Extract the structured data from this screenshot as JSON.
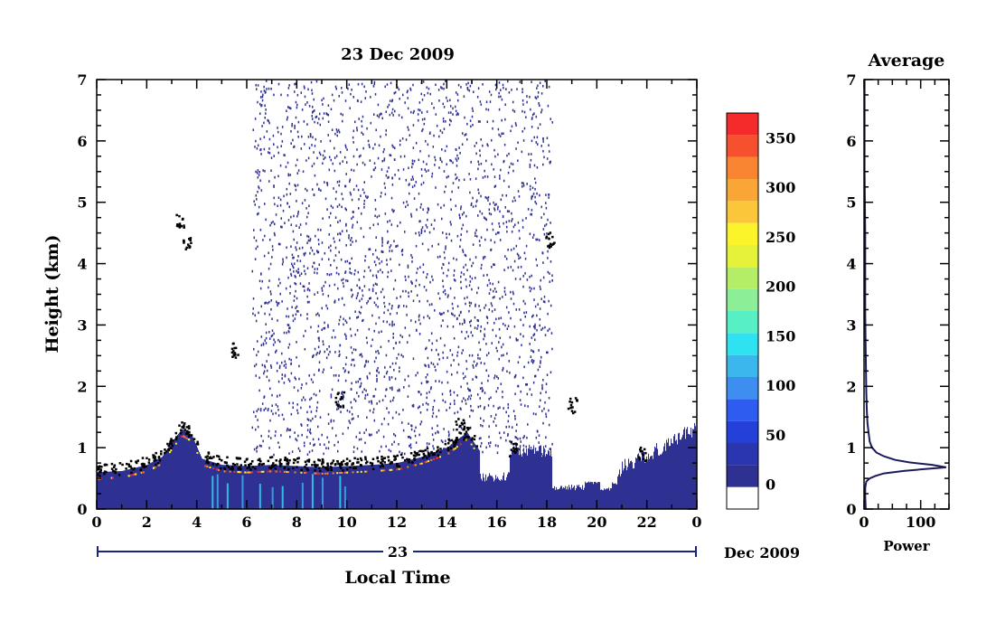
{
  "chart_data": [
    {
      "type": "heatmap",
      "title": "23 Dec 2009",
      "xlabel": "Local Time",
      "ylabel": "Height (km)",
      "x_ticks": [
        "0",
        "2",
        "4",
        "6",
        "8",
        "10",
        "12",
        "14",
        "16",
        "18",
        "20",
        "22",
        "0"
      ],
      "x_range": [
        0,
        24
      ],
      "y_ticks": [
        "0",
        "1",
        "2",
        "3",
        "4",
        "5",
        "6",
        "7"
      ],
      "y_range": [
        0,
        7
      ],
      "date_bar": {
        "day_label": "23",
        "month_label": "Dec 2009"
      },
      "colorbar": {
        "tick_labels": [
          "0",
          "50",
          "100",
          "150",
          "200",
          "250",
          "300",
          "350"
        ],
        "tick_values": [
          0,
          50,
          100,
          150,
          200,
          250,
          300,
          350
        ],
        "range": [
          -25,
          375
        ],
        "colors": [
          "#ffffff",
          "#2e3192",
          "#2a35b0",
          "#2540d8",
          "#2f5cf0",
          "#3e8ef2",
          "#3cb7ee",
          "#2fe2f2",
          "#56f0c4",
          "#8cee96",
          "#b4ee66",
          "#e6f23a",
          "#fcf42a",
          "#fbc63a",
          "#f9a636",
          "#f98432",
          "#f7502e",
          "#f52a2a"
        ]
      },
      "boundary_layer_top_km": [
        [
          0.0,
          0.6
        ],
        [
          1.0,
          0.62
        ],
        [
          2.0,
          0.72
        ],
        [
          2.6,
          0.85
        ],
        [
          3.0,
          1.1
        ],
        [
          3.4,
          1.3
        ],
        [
          3.8,
          1.2
        ],
        [
          4.2,
          0.82
        ],
        [
          5.0,
          0.72
        ],
        [
          6.0,
          0.7
        ],
        [
          7.0,
          0.72
        ],
        [
          8.0,
          0.7
        ],
        [
          9.0,
          0.68
        ],
        [
          10.0,
          0.7
        ],
        [
          11.0,
          0.72
        ],
        [
          12.0,
          0.75
        ],
        [
          13.0,
          0.85
        ],
        [
          14.0,
          1.0
        ],
        [
          14.8,
          1.25
        ],
        [
          15.3,
          0.95
        ]
      ],
      "noise_region_hours": [
        6.2,
        18.2
      ],
      "clear_zone_hours": [
        19.5,
        20.8
      ]
    },
    {
      "type": "line",
      "title": "Average",
      "xlabel": "Power",
      "ylabel": "",
      "x_ticks": [
        "0",
        "100"
      ],
      "xlim": [
        0,
        150
      ],
      "y_ticks": [
        "0",
        "1",
        "2",
        "3",
        "4",
        "5",
        "6",
        "7"
      ],
      "ylim": [
        0,
        7
      ],
      "series": [
        {
          "x": [
            3,
            2,
            2,
            4,
            10,
            20,
            35,
            70,
            105,
            145,
            120,
            80,
            55,
            35,
            22,
            14,
            10,
            8,
            6,
            5,
            4,
            3,
            2,
            2,
            2,
            1,
            1
          ],
          "y": [
            0.0,
            0.2,
            0.35,
            0.45,
            0.5,
            0.54,
            0.58,
            0.62,
            0.65,
            0.68,
            0.72,
            0.76,
            0.8,
            0.86,
            0.92,
            1.0,
            1.1,
            1.25,
            1.4,
            1.6,
            1.9,
            2.5,
            3.2,
            4.0,
            4.5,
            5.5,
            7.0
          ]
        }
      ]
    }
  ]
}
